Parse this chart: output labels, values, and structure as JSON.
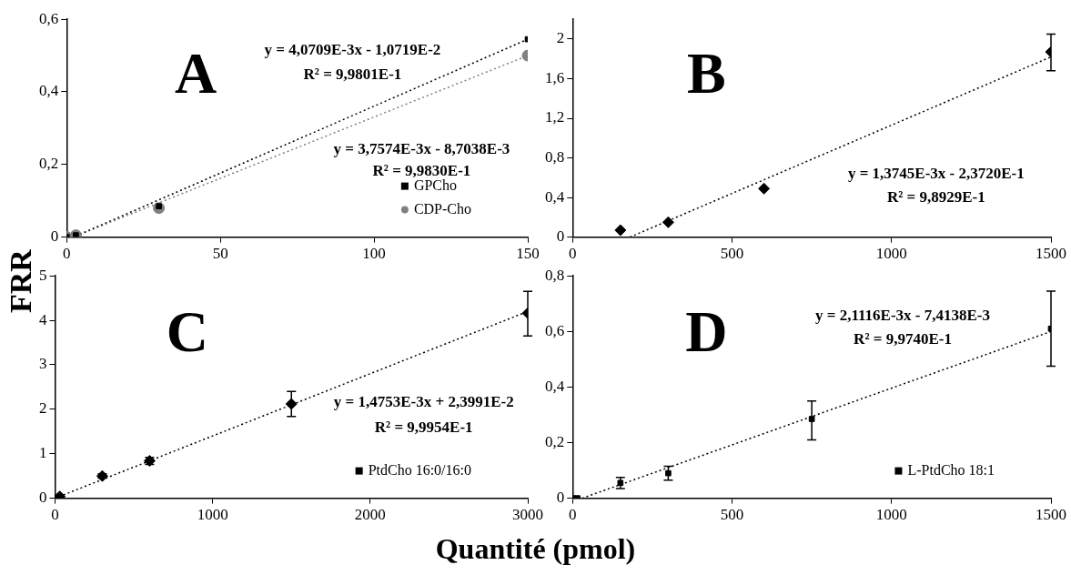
{
  "chart_data": [
    {
      "type": "scatter",
      "title": "A",
      "ylabel": "FRR",
      "legend": "bottom right",
      "grid": false,
      "xlim": [
        0,
        150
      ],
      "xticks": [
        0,
        50,
        100,
        150
      ],
      "ylim": [
        0,
        0.6
      ],
      "yticks": [
        0,
        {
          "value": 0.2,
          "label": "0,2"
        },
        {
          "value": 0.4,
          "label": "0,4"
        },
        {
          "value": 0.6,
          "label": "0,6"
        }
      ],
      "annotations": [
        "y = 4,0709E-3x - 1,0719E-2",
        "R² = 9,9801E-1",
        "y = 3,7574E-3x - 8,7038E-3",
        "R² = 9,9830E-1"
      ],
      "series": [
        {
          "name": "GPCho",
          "color": "#000000",
          "marker": "square",
          "x": [
            0,
            3,
            30,
            150
          ],
          "values": [
            0,
            0.005,
            0.085,
            0.545
          ]
        },
        {
          "name": "CDP-Cho",
          "color": "#808080",
          "marker": "circle",
          "x": [
            0,
            3,
            30,
            150
          ],
          "values": [
            0,
            0.005,
            0.08,
            0.5
          ]
        },
        {
          "type": "line",
          "color": "#000000",
          "line_style": "dotted",
          "marker": "none",
          "x": [
            3,
            150
          ],
          "values": [
            0.003,
            0.545
          ]
        },
        {
          "type": "line",
          "color": "#808080",
          "line_style": "dotted",
          "marker": "none",
          "x": [
            3,
            150
          ],
          "values": [
            0.003,
            0.5
          ]
        }
      ]
    },
    {
      "type": "scatter",
      "title": "B",
      "grid": false,
      "xlim": [
        0,
        1500
      ],
      "xticks": [
        0,
        500,
        1000,
        1500
      ],
      "ylim": [
        0,
        2.2
      ],
      "yticks": [
        0,
        {
          "value": 0.4,
          "label": "0,4"
        },
        {
          "value": 0.8,
          "label": "0,8"
        },
        {
          "value": 1.2,
          "label": "1,2"
        },
        {
          "value": 1.6,
          "label": "1,6"
        },
        2
      ],
      "annotations": [
        "y = 1,3745E-3x - 2,3720E-1",
        "R² = 9,8929E-1"
      ],
      "series": [
        {
          "color": "#000000",
          "marker": "diamond",
          "x": [
            150,
            300,
            600,
            1500
          ],
          "values": [
            0.07,
            0.15,
            0.49,
            1.87
          ],
          "errors": [
            null,
            null,
            null,
            [
              1.68,
              2.05
            ]
          ]
        },
        {
          "type": "line",
          "color": "#000000",
          "line_style": "dotted",
          "marker": "none",
          "x": [
            180,
            1500
          ],
          "values": [
            0,
            1.82
          ]
        }
      ]
    },
    {
      "type": "scatter",
      "title": "C",
      "xlabel": "Quantité (pmol)",
      "legend": "bottom right",
      "grid": false,
      "xlim": [
        0,
        3000
      ],
      "xticks": [
        0,
        1000,
        2000,
        3000
      ],
      "ylim": [
        0,
        5
      ],
      "yticks": [
        0,
        1,
        2,
        3,
        4,
        5
      ],
      "annotations": [
        "y = 1,4753E-3x + 2,3991E-2",
        "R² = 9,9954E-1"
      ],
      "series": [
        {
          "name": "PtdCho 16:0/16:0",
          "color": "#000000",
          "marker": "diamond",
          "x": [
            30,
            300,
            600,
            1500,
            3000
          ],
          "values": [
            0.04,
            0.5,
            0.84,
            2.12,
            4.16
          ],
          "errors": [
            null,
            0.05,
            0.08,
            [
              1.84,
              2.4
            ],
            [
              3.65,
              4.65
            ]
          ]
        },
        {
          "type": "line",
          "color": "#000000",
          "line_style": "dotted",
          "marker": "none",
          "x": [
            0,
            3000
          ],
          "values": [
            0,
            4.2
          ]
        }
      ]
    },
    {
      "type": "scatter",
      "title": "D",
      "legend": "bottom right",
      "grid": false,
      "xlim": [
        0,
        1500
      ],
      "xticks": [
        0,
        500,
        1000,
        1500
      ],
      "ylim": [
        0,
        0.8
      ],
      "yticks": [
        0,
        {
          "value": 0.2,
          "label": "0,2"
        },
        {
          "value": 0.4,
          "label": "0,4"
        },
        {
          "value": 0.6,
          "label": "0,6"
        },
        {
          "value": 0.8,
          "label": "0,8"
        }
      ],
      "annotations": [
        "y = 2,1116E-3x - 7,4138E-3",
        "R² = 9,9740E-1"
      ],
      "series": [
        {
          "name": "L-PtdCho 18:1",
          "color": "#000000",
          "marker": "square",
          "x": [
            0,
            15,
            150,
            300,
            750,
            1500
          ],
          "values": [
            0,
            0,
            0.055,
            0.09,
            0.285,
            0.61
          ],
          "errors": [
            null,
            null,
            [
              0.035,
              0.075
            ],
            [
              0.065,
              0.115
            ],
            [
              0.21,
              0.35
            ],
            [
              0.475,
              0.745
            ]
          ]
        },
        {
          "type": "line",
          "color": "#000000",
          "line_style": "dotted",
          "marker": "none",
          "x": [
            30,
            1500
          ],
          "values": [
            0,
            0.6
          ]
        }
      ]
    }
  ]
}
